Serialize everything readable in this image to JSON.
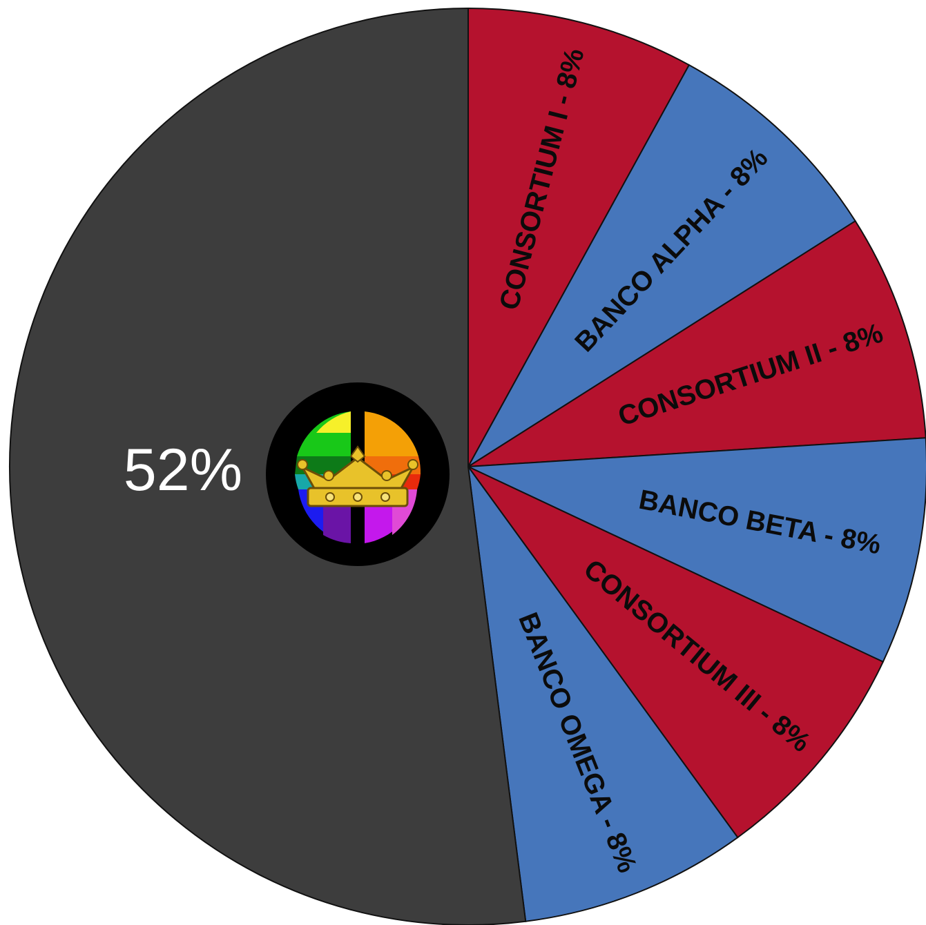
{
  "chart_data": {
    "type": "pie",
    "title": "",
    "slices": [
      {
        "label": "CONSORTIUM I - 8%",
        "value": 8,
        "color": "#b5122e"
      },
      {
        "label": "BANCO ALPHA - 8%",
        "value": 8,
        "color": "#4676bb"
      },
      {
        "label": "CONSORTIUM II - 8%",
        "value": 8,
        "color": "#b5122e"
      },
      {
        "label": "BANCO BETA - 8%",
        "value": 8,
        "color": "#4676bb"
      },
      {
        "label": "CONSORTIUM III - 8%",
        "value": 8,
        "color": "#b5122e"
      },
      {
        "label": "BANCO OMEGA - 8%",
        "value": 8,
        "color": "#4676bb"
      },
      {
        "label": "52%",
        "value": 52,
        "color": "#3d3d3d"
      }
    ],
    "start_angle_deg": 0,
    "direction": "clockwise",
    "center_emblem": "crown-emblem"
  }
}
